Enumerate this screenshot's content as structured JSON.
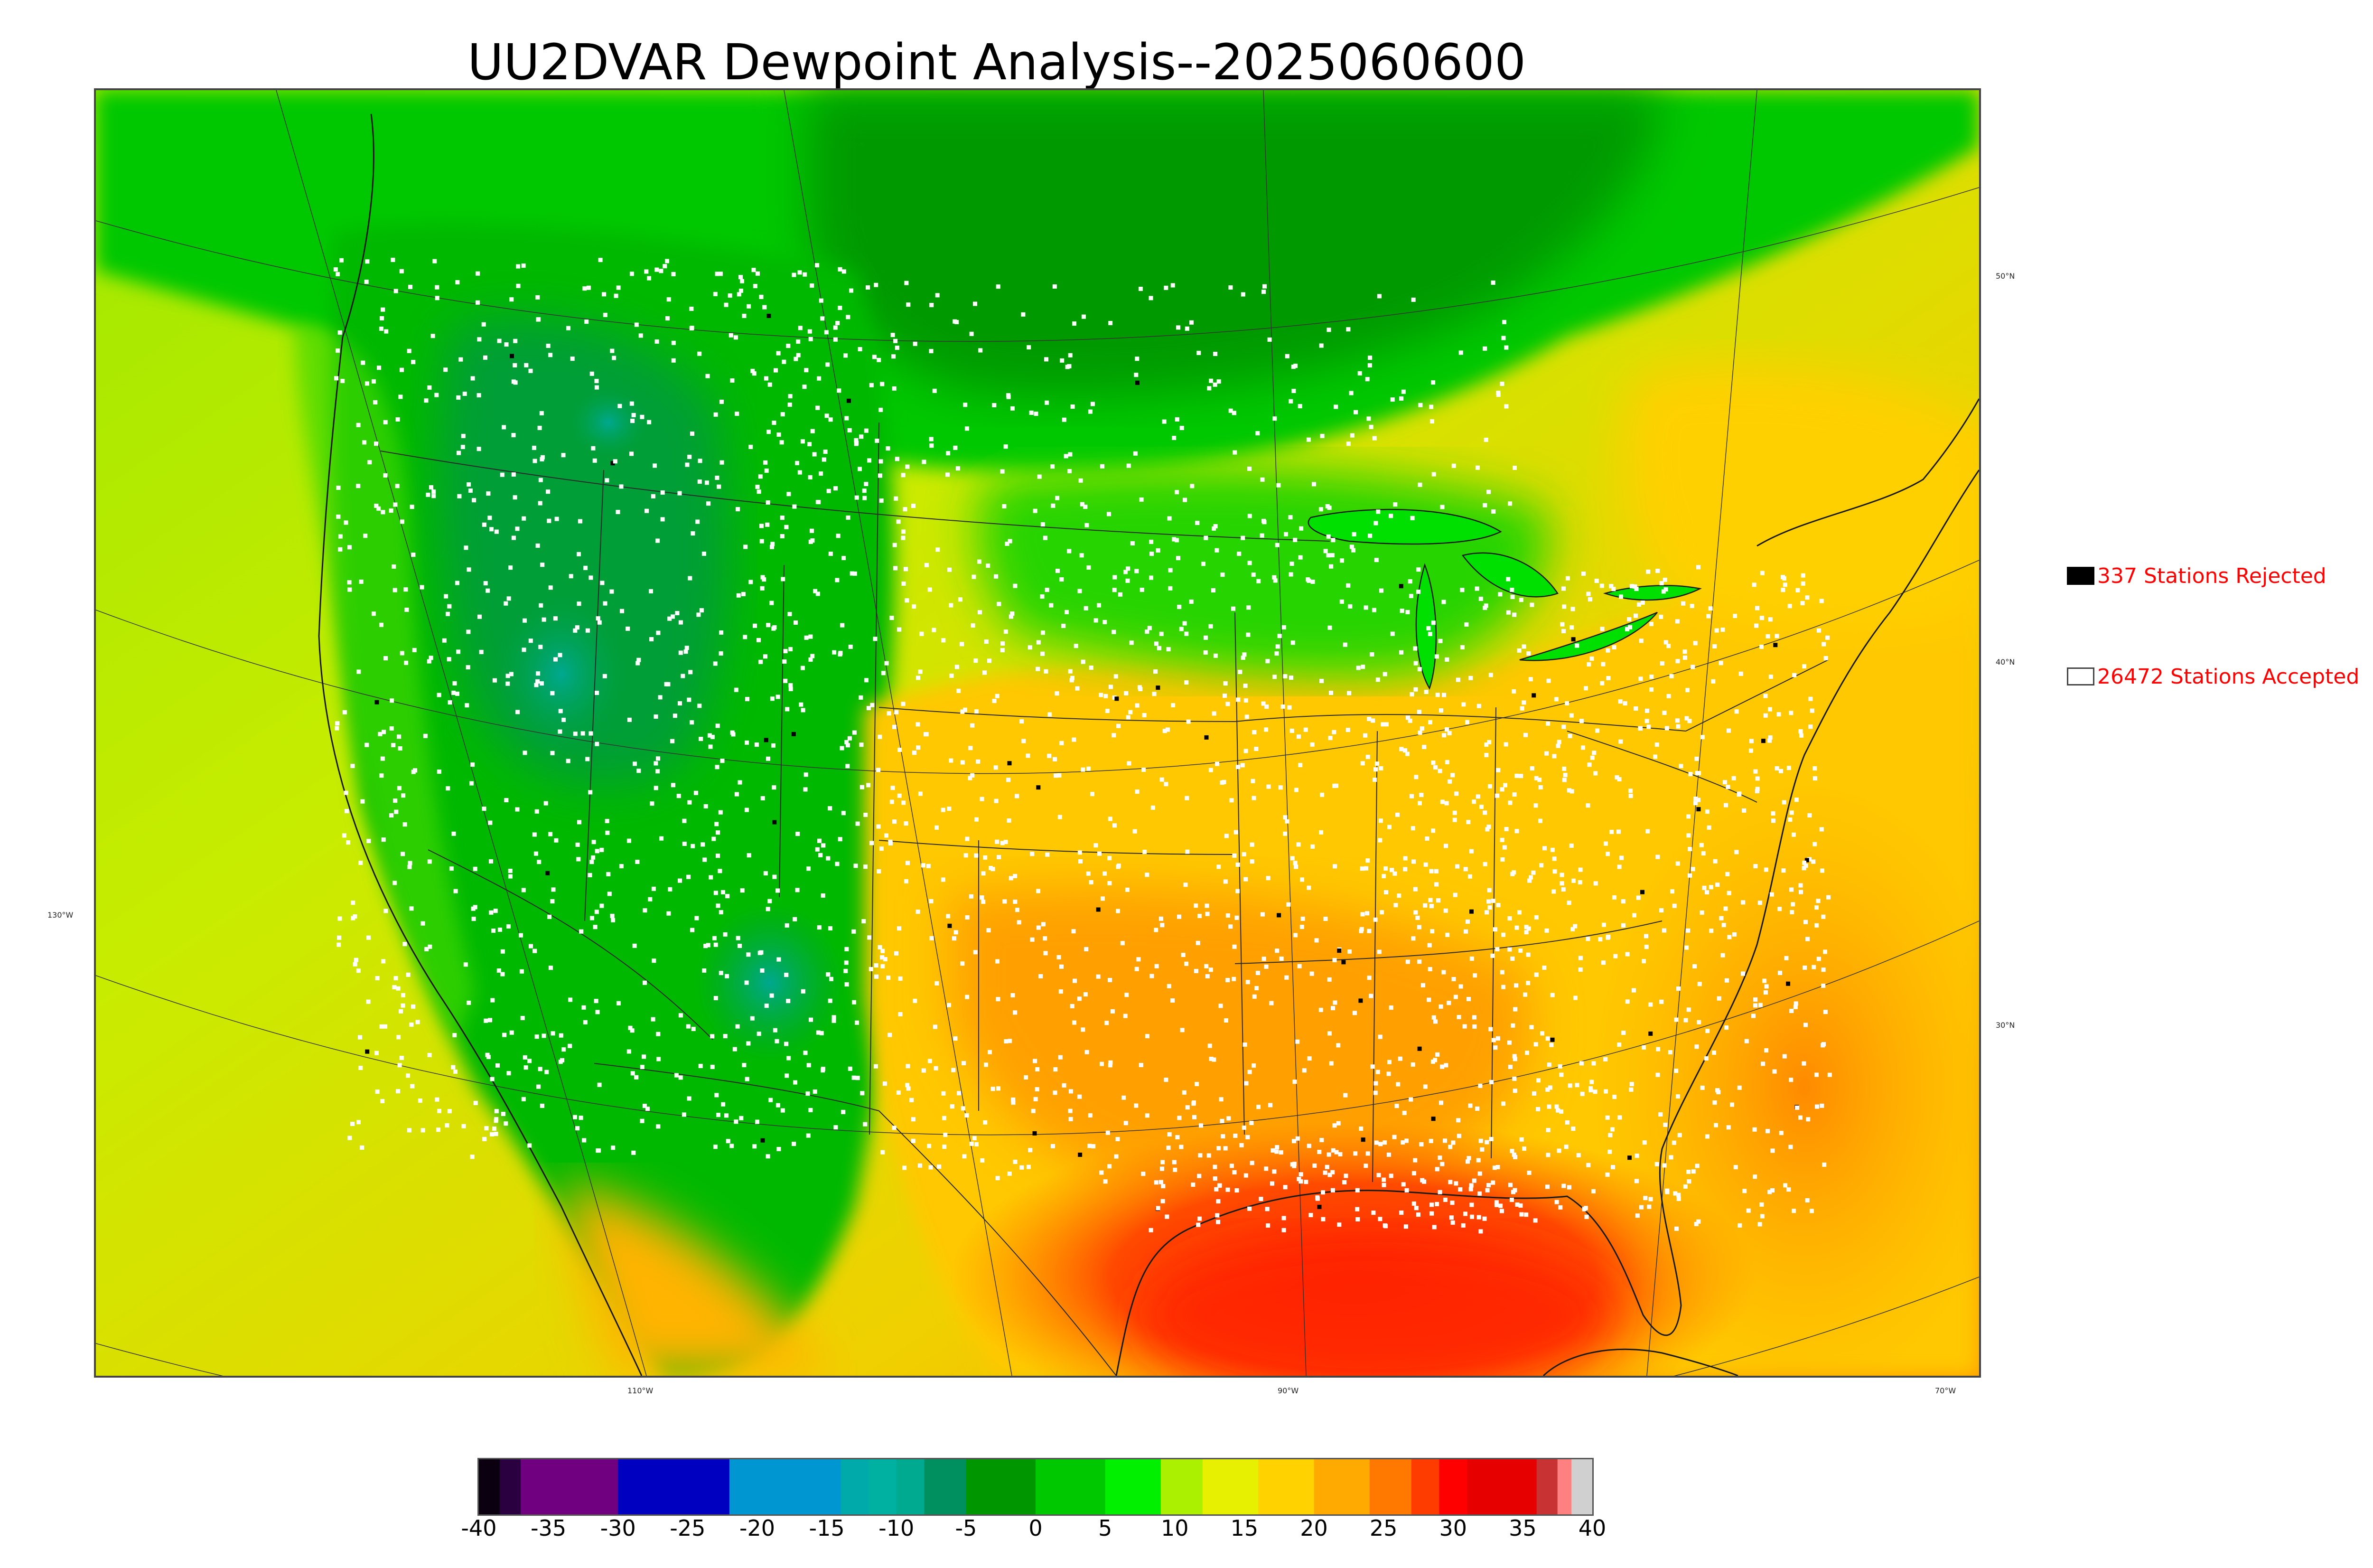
{
  "title": "UU2DVAR Dewpoint Analysis--2025060600",
  "map": {
    "projection": "lambert-conformal",
    "basemap_outlines": [
      "coastlines",
      "country-borders",
      "state-borders",
      "province-borders"
    ],
    "field": "dewpoint",
    "station_markers": {
      "accepted_color": "#ffffff",
      "rejected_color": "#000000"
    },
    "longitude_labels": [
      "130°W",
      "110°W",
      "90°W",
      "70°W"
    ],
    "latitude_labels": [
      "50°N",
      "40°N",
      "30°N"
    ]
  },
  "legend": {
    "rejected": {
      "label": "337 Stations Rejected",
      "swatch_color": "#000000",
      "text_color": "#ff0000"
    },
    "accepted": {
      "label": "26472 Stations Accepted",
      "swatch_color": "#ffffff",
      "text_color": "#ff0000"
    }
  },
  "colorbar": {
    "min": -40,
    "max": 40,
    "tick_labels": [
      "-40",
      "-35",
      "-30",
      "-25",
      "-20",
      "-15",
      "-10",
      "-5",
      "0",
      "5",
      "10",
      "15",
      "20",
      "25",
      "30",
      "35",
      "40"
    ],
    "tick_values": [
      -40,
      -35,
      -30,
      -25,
      -20,
      -15,
      -10,
      -5,
      0,
      5,
      10,
      15,
      20,
      25,
      30,
      35,
      40
    ],
    "stops": [
      {
        "from": -40,
        "to": -38.5,
        "color": "#0a0010"
      },
      {
        "from": -38.5,
        "to": -37,
        "color": "#2a0040"
      },
      {
        "from": -37,
        "to": -30,
        "color": "#700080"
      },
      {
        "from": -30,
        "to": -22,
        "color": "#0000c0"
      },
      {
        "from": -22,
        "to": -14,
        "color": "#0096d2"
      },
      {
        "from": -14,
        "to": -12,
        "color": "#00aaaa"
      },
      {
        "from": -12,
        "to": -10,
        "color": "#00b0a0"
      },
      {
        "from": -10,
        "to": -8,
        "color": "#00aa90"
      },
      {
        "from": -8,
        "to": -5,
        "color": "#009060"
      },
      {
        "from": -5,
        "to": 0,
        "color": "#009600"
      },
      {
        "from": 0,
        "to": 5,
        "color": "#00c800"
      },
      {
        "from": 5,
        "to": 9,
        "color": "#00f000"
      },
      {
        "from": 9,
        "to": 12,
        "color": "#aaf000"
      },
      {
        "from": 12,
        "to": 16,
        "color": "#e6f000"
      },
      {
        "from": 16,
        "to": 20,
        "color": "#ffd200"
      },
      {
        "from": 20,
        "to": 24,
        "color": "#ffaa00"
      },
      {
        "from": 24,
        "to": 27,
        "color": "#ff7800"
      },
      {
        "from": 27,
        "to": 29,
        "color": "#ff3c00"
      },
      {
        "from": 29,
        "to": 31,
        "color": "#ff0000"
      },
      {
        "from": 31,
        "to": 36,
        "color": "#e60000"
      },
      {
        "from": 36,
        "to": 37.5,
        "color": "#c83232"
      },
      {
        "from": 37.5,
        "to": 38.5,
        "color": "#ff8080"
      },
      {
        "from": 38.5,
        "to": 40,
        "color": "#d0d0d0"
      }
    ]
  }
}
